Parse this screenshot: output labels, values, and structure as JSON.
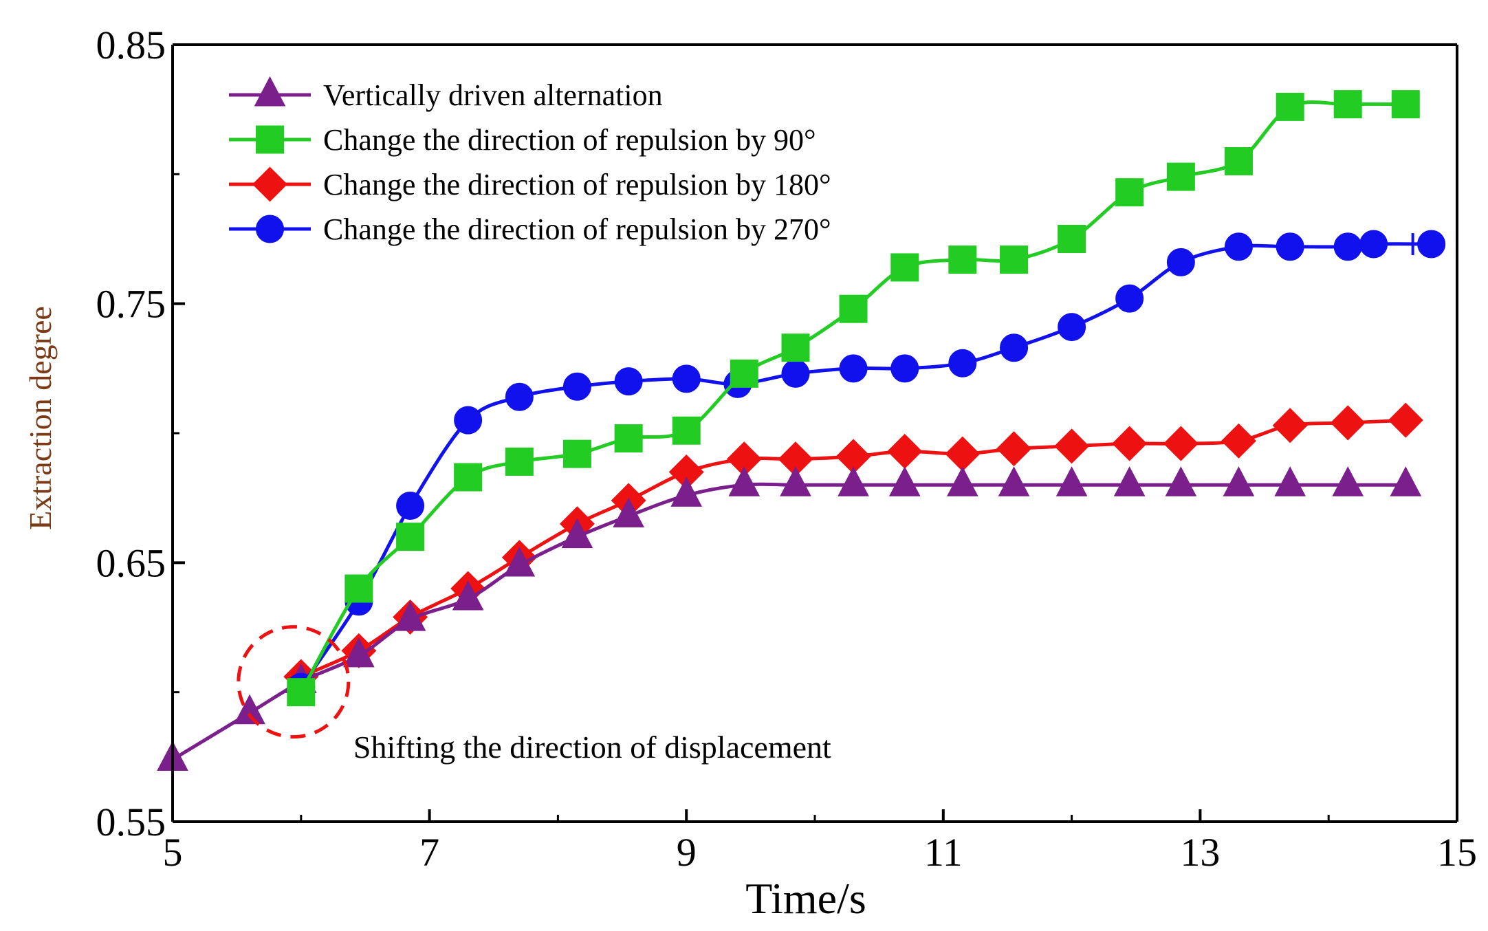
{
  "chart_data": {
    "type": "line",
    "title": "",
    "xlabel": "Time/s",
    "ylabel": "Extraction  degree",
    "xlim": [
      5,
      15
    ],
    "ylim": [
      0.55,
      0.85
    ],
    "xticks": [
      5,
      7,
      9,
      11,
      13,
      15
    ],
    "yticks": [
      0.55,
      0.65,
      0.75,
      0.85
    ],
    "ytick_labels": [
      "0.55",
      "0.65",
      "0.75",
      "0.85"
    ],
    "legend_position": "top-left",
    "grid": false,
    "annotation": {
      "text": "Shifting the direction of displacement",
      "circle_center": [
        6.0,
        0.604
      ],
      "text_anchor": [
        6.45,
        0.579
      ]
    },
    "series": [
      {
        "name": "Vertically driven alternation",
        "color": "#7b1f8c",
        "marker": "triangle",
        "x": [
          5.0,
          5.6,
          6.0,
          6.45,
          6.85,
          7.3,
          7.7,
          8.15,
          8.55,
          9.0,
          9.45,
          9.85,
          10.3,
          10.7,
          11.15,
          11.55,
          12.0,
          12.45,
          12.85,
          13.3,
          13.7,
          14.15,
          14.6
        ],
        "y": [
          0.574,
          0.592,
          0.604,
          0.614,
          0.628,
          0.636,
          0.649,
          0.66,
          0.668,
          0.676,
          0.68,
          0.68,
          0.68,
          0.68,
          0.68,
          0.68,
          0.68,
          0.68,
          0.68,
          0.68,
          0.68,
          0.68,
          0.68
        ]
      },
      {
        "name": "Change the direction of repulsion by 90°",
        "color": "#22cc22",
        "marker": "square",
        "x": [
          6.0,
          6.45,
          6.85,
          7.3,
          7.7,
          8.15,
          8.55,
          9.0,
          9.45,
          9.85,
          10.3,
          10.7,
          11.15,
          11.55,
          12.0,
          12.45,
          12.85,
          13.3,
          13.7,
          14.15,
          14.6
        ],
        "y": [
          0.6,
          0.64,
          0.66,
          0.683,
          0.689,
          0.692,
          0.698,
          0.701,
          0.723,
          0.733,
          0.748,
          0.764,
          0.767,
          0.767,
          0.775,
          0.793,
          0.799,
          0.805,
          0.826,
          0.827,
          0.827
        ]
      },
      {
        "name": "Change the direction of repulsion by 180°",
        "color": "#ee1111",
        "marker": "diamond",
        "x": [
          6.0,
          6.45,
          6.85,
          7.3,
          7.7,
          8.15,
          8.55,
          9.0,
          9.45,
          9.85,
          10.3,
          10.7,
          11.15,
          11.55,
          12.0,
          12.45,
          12.85,
          13.3,
          13.7,
          14.15,
          14.6
        ],
        "y": [
          0.606,
          0.616,
          0.629,
          0.64,
          0.652,
          0.665,
          0.674,
          0.685,
          0.69,
          0.69,
          0.691,
          0.693,
          0.692,
          0.694,
          0.695,
          0.696,
          0.696,
          0.697,
          0.703,
          0.704,
          0.705
        ]
      },
      {
        "name": "Change the direction of repulsion by 270°",
        "color": "#1111ee",
        "marker": "circle",
        "x": [
          6.0,
          6.45,
          6.85,
          7.3,
          7.7,
          8.15,
          8.55,
          9.0,
          9.4,
          9.85,
          10.3,
          10.7,
          11.15,
          11.55,
          12.0,
          12.45,
          12.85,
          13.3,
          13.7,
          14.15,
          14.35,
          14.8
        ],
        "y": [
          0.602,
          0.635,
          0.672,
          0.705,
          0.714,
          0.718,
          0.72,
          0.721,
          0.719,
          0.723,
          0.725,
          0.725,
          0.727,
          0.733,
          0.741,
          0.752,
          0.766,
          0.772,
          0.772,
          0.772,
          0.773,
          0.773
        ]
      }
    ]
  }
}
